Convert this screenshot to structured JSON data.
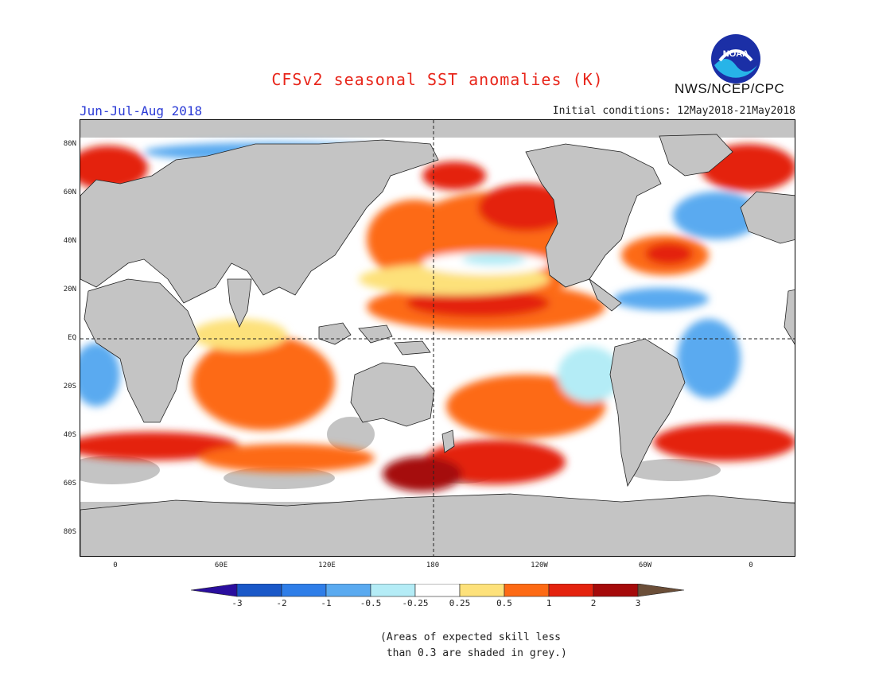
{
  "title": "CFSv2 seasonal SST anomalies (K)",
  "agency": "NWS/NCEP/CPC",
  "logo_text": "NOAA",
  "season": "Jun-Jul-Aug 2018",
  "initial_conditions": "Initial conditions: 12May2018-21May2018",
  "lat_labels": [
    "80N",
    "60N",
    "40N",
    "20N",
    "EQ",
    "20S",
    "40S",
    "60S",
    "80S"
  ],
  "lon_labels": [
    "0",
    "60E",
    "120E",
    "180",
    "120W",
    "60W",
    "0"
  ],
  "colorbar": {
    "ticks": [
      "-3",
      "-2",
      "-1",
      "-0.5",
      "-0.25",
      "0.25",
      "0.5",
      "1",
      "2",
      "3"
    ],
    "colors": [
      "#2a0e9e",
      "#1a58c8",
      "#2f7ee8",
      "#5aaaf0",
      "#b4ecf6",
      "#ffffff",
      "#fde17a",
      "#fd6a14",
      "#e4230e",
      "#a50a0a",
      "#6b4e38"
    ]
  },
  "footnote_line1": "(Areas of expected skill less",
  "footnote_line2": " than 0.3 are shaded in grey.)"
}
